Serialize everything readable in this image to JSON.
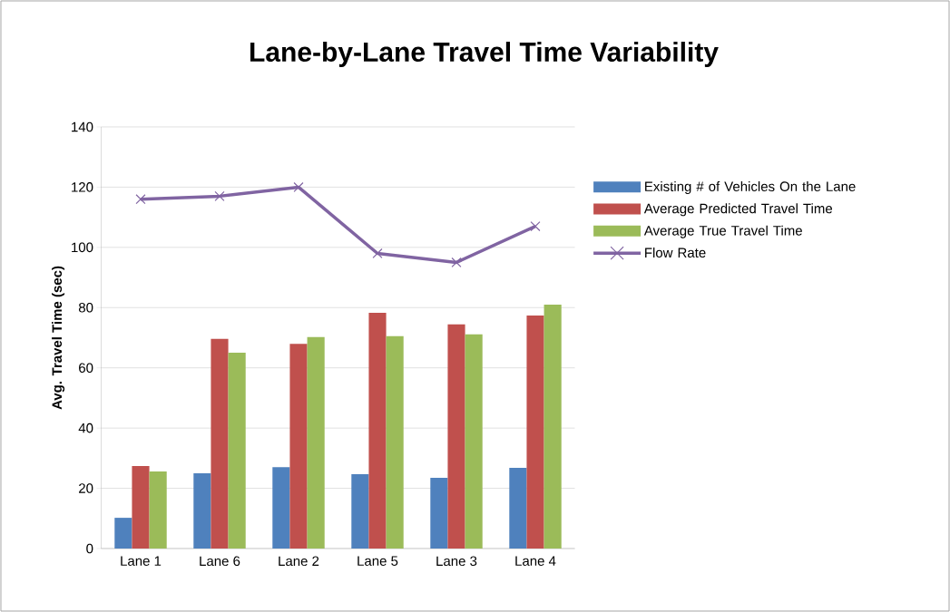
{
  "chart_data": {
    "type": "bar",
    "title": "Lane-by-Lane Travel Time Variability",
    "ylabel": "Avg. Travel Time (sec)",
    "categories": [
      "Lane 1",
      "Lane 6",
      "Lane 2",
      "Lane 5",
      "Lane 3",
      "Lane 4"
    ],
    "series": [
      {
        "name": "Existing # of Vehicles On the Lane",
        "color": "#4f81bd",
        "values": [
          10.2,
          25,
          27,
          24.7,
          23.5,
          26.8
        ]
      },
      {
        "name": "Average Predicted Travel Time",
        "color": "#c0504d",
        "values": [
          27.4,
          69.6,
          68,
          78.3,
          74.4,
          77.4
        ]
      },
      {
        "name": "Average True Travel Time",
        "color": "#9bbb59",
        "values": [
          25.6,
          65,
          70.2,
          70.5,
          71.1,
          81
        ]
      },
      {
        "name": "Flow Rate",
        "type": "line",
        "color": "#8064a2",
        "marker": "cross",
        "values": [
          116,
          117,
          120,
          98,
          95,
          107
        ]
      }
    ],
    "ylim": [
      0,
      140
    ],
    "yticks": [
      0,
      20,
      40,
      60,
      80,
      100,
      120,
      140
    ],
    "grid": "y",
    "legend": "right"
  }
}
